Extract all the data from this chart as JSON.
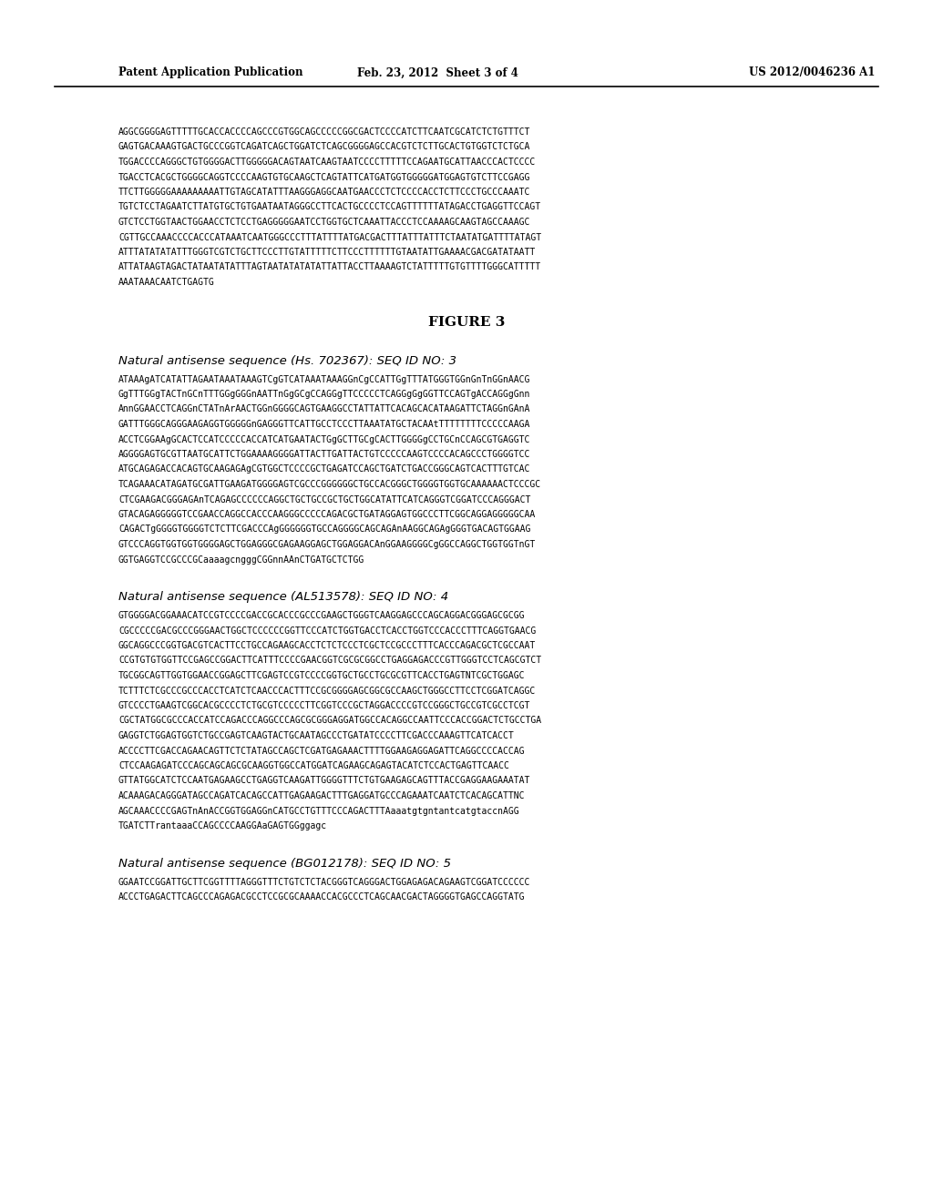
{
  "background_color": "#ffffff",
  "header_left": "Patent Application Publication",
  "header_center": "Feb. 23, 2012  Sheet 3 of 4",
  "header_right": "US 2012/0046236 A1",
  "figure_label": "FIGURE 3",
  "seq_block1_title": "Natural antisense sequence (Hs. 702367): SEQ ID NO: 3",
  "seq_block1_text": [
    "ATAAAgATCATATTAGAATAAATAAAGTCgGTCATAAATAAAGGnCgCCATTGgTTTATGGGTGGnGnTnGGnAACG",
    "GgTTTGGgTACTnGCnTTTGGgGGGnAATTnGgGCgCCAGGgTTCCCCCTCAGGgGgGGTTCCAGTgACCAGGgGnn",
    "AnnGGAACCTCAGGnCTATnArAACTGGnGGGGCAGTGAAGGCCTATTATTCACAGCACATAAGATTCTAGGnGAnA",
    "GATTTGGGCAGGGAAGAGGTGGGGGnGAGGGTTCATTGCCTCCCTTAAATATGCTACAAtTTTTTTTTCCCCCAAGA",
    "ACCTCGGAAgGCACTCCATCCCCCACCATCATGAATACTGgGCTTGCgCACTTGGGGgCCTGCnCCAGCGTGAGGTC",
    "AGGGGAGTGCGTTAATGCATTCTGGAAAAGGGGATTACTTGATTACTGTCCCCCAAGTCCCCACAGCCCTGGGGTCC",
    "ATGCAGAGACCACAGTGCAAGAGAgCGTGGCTCCCCGCTGAGATCCAGCTGATCTGACCGGGCAGTCACTTTGTCAC",
    "TCAGAAACATAGATGCGATTGAAGATGGGGAGTCGCCCGGGGGGCTGCCACGGGCTGGGGTGGTGCAAAAAACTCCCGC",
    "CTCGAAGACGGGAGAnTCAGAGCCCCCCAGGCTGCTGCCGCTGCTGGCATATTCATCAGGGTCGGATCCCAGGGACT",
    "GTACAGAGGGGGTCCGAACCAGGCCACCCAAGGGCCCCCAGACGCTGATAGGAGTGGCCCTTCGGCAGGAGGGGGCAA",
    "CAGACTgGGGGTGGGGTCTCTTCGACCCAgGGGGGGTGCCAGGGGCAGCAGAnAAGGCAGAgGGGTGACAGTGGAAG",
    "GTCCCAGGTGGTGGTGGGGAGCTGGAGGGCGAGAAGGAGCTGGAGGACAnGGAAGGGGCgGGCCAGGCTGGTGGTnGT",
    "GGTGAGGTCCGCCCGCaaaagcngggCGGnnAAnCTGATGCTCTGG"
  ],
  "seq_block2_title": "Natural antisense sequence (AL513578): SEQ ID NO: 4",
  "seq_block2_text": [
    "GTGGGGACGGAAACATCCGTCCCCGACCGCACCCGCCCGAAGCTGGGTCAAGGAGCCCAGCAGGACGGGAGCGCGG",
    "CGCCCCCGACGCCCGGGAACTGGCTCCCCCCGGTTCCCATCTGGTGACCTCACCTGGTCCCACCCTTTCAGGTGAACG",
    "GGCAGGCCCGGTGACGTCACTTCCTGCCAGAAGCACCTCTCTCCCTCGCTCCGCCCTTTCACCCAGACGCTCGCCAAT",
    "CCGTGTGTGGTTCCGAGCCGGACTTCATTTCCCCGAACGGTCGCGCGGCCTGAGGAGACCCGTTGGGTCCTCAGCGTCT",
    "TGCGGCAGTTGGTGGAACCGGAGCTTCGAGTCCGTCCCCGGTGCTGCCTGCGCGTTCACCTGAGTNTCGCTGGAGC",
    "TCTTTCTCGCCCGCCCACCTCATCTCAACCCACTTTCCGCGGGGAGCGGCGCCAAGCTGGGCCTTCCTCGGATCAGGC",
    "GTCCCCTGAAGTCGGCACGCCCCTCTGCGTCCCCCTTCGGTCCCGCTAGGACCCCGTCCGGGCTGCCGTCGCCTCGT",
    "CGCTATGGCGCCCACCATCCAGACCCAGGCCCAGCGCGGGAGGATGGCCACAGGCCAATTCCCACCGGACTCTGCCTGA",
    "GAGGTCTGGAGTGGTCTGCCGAGTCAAGTACTGCAATAGCCCTGATATCCCCTTCGACCCAAAGTTCATCACCT",
    "ACCCCTTCGACCAGAACAGTTCTCTATAGCCAGCTCGATGAGAAACTTTTGGAAGAGGAGATTCAGGCCCCACCAG",
    "CTCCAAGAGATCCCAGCAGCAGCGCAAGGTGGCCATGGATCAGAAGCAGAGTACATCTCCACTGAGTTCAACC",
    "GTTATGGCATCTCCAATGAGAAGCCTGAGGTCAAGATTGGGGTTTCTGTGAAGAGCAGTTTACCGAGGAAGAAATAT",
    "ACAAAGACAGGGATAGCCAGATCACAGCCATTGAGAAGACTTTGAGGATGCCCAGAAATCAATCTCACAGCATTNC",
    "AGCAAACCCCGAGTnAnACCGGTGGAGGnCATGCCTGTTTCCCAGACTTTAaaatgtgntantcatgtaccnAGG",
    "TGATCTTrantaaaCCAGCCCCAAGGAaGAGTGGggagc"
  ],
  "seq_block3_title": "Natural antisense sequence (BG012178): SEQ ID NO: 5",
  "seq_block3_text": [
    "GGAATCCGGATTGCTTCGGTTTTAGGGTTTCTGTCTCTACGGGTCAGGGACTGGAGAGACAGAAGTCGGATCCCCCC",
    "ACCCTGAGACTTCAGCCCAGAGACGCCTCCGCGCAAAACCACGCCCTCAGCAACGACTAGGGGTGAGCCAGGTATG"
  ],
  "intro_text": [
    "AGGCGGGGAGTTTTTGCACCACCCCAGCCCGTGGCAGCCCCCGGCGACTCCCCATCTTCAATCGCATCTCTGTTTCT",
    "GAGTGACAAAGTGACTGCCCGGTCAGATCAGCTGGATCTCAGCGGGGAGCCACGTCTCTTGCACTGTGGTCTCTGCA",
    "TGGACCCCAGGGCTGTGGGGACTTGGGGGACAGTAATCAAGTAATCCCCTTTTTCCAGAATGCATTAACCCACTCCCC",
    "TGACCTCACGCTGGGGCAGGTCCCCAAGTGTGCAAGCTCAGTATTCATGATGGTGGGGGATGGAGTGTCTTCCGAGG",
    "TTCTTGGGGGAAAAAAAAATTGTAGCATATTTAAGGGAGGCAATGAACCCTCTCCCCACCTCTTCCCTGCCCAAATC",
    "TGTCTCCTAGAATCTTATGTGCTGTGAATAATAGGGCCTTCACTGCCCCTCCAGTTTTTTATAGACCTGAGGTTCCAGT",
    "GTCTCCTGGTAACTGGAACCTCTCCTGAGGGGGAATCCTGGTGCTCAAATTACCCTCCAAAAGCAAGTAGCCAAAGC",
    "CGTTGCCAAACCCCACCCATAAATCAATGGGCCCTTTATTTTATGACGACTTTATTTATTTCTAATATGATTTTATAGT",
    "ATTTATATATATTTGGGTCGTCTGCTTCCCTTGTATTTTTCTTCCCTTTTTTGTAATATTGAAAACGACGATATAATT",
    "ATTATAAGTAGACTATAATATATTTAGTAATATATATATTATTACCTTAAAAGTCTATTTTTGTGTTTTGGGCATTTTT",
    "AAATAAACAATCTGAGTG"
  ]
}
